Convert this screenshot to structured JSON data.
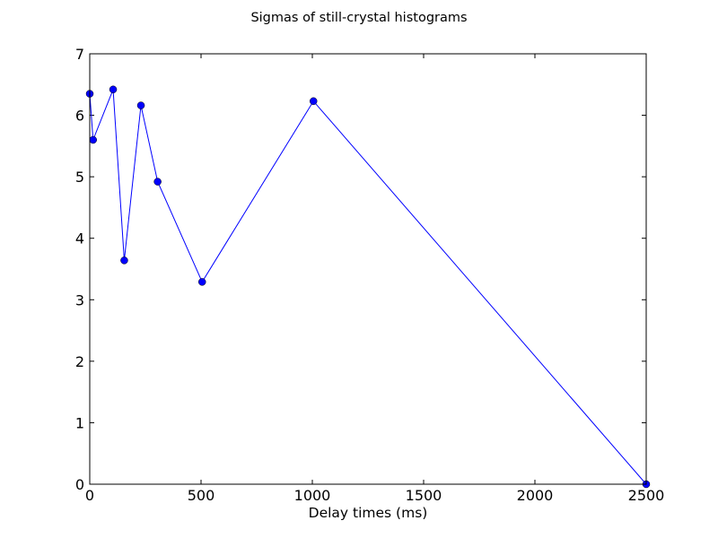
{
  "chart_data": {
    "type": "line",
    "title": "Sigmas of still-crystal histograms",
    "xlabel": "Delay times (ms)",
    "ylabel": "",
    "xlim": [
      0,
      2500
    ],
    "ylim": [
      0,
      7
    ],
    "xticks": [
      0,
      500,
      1000,
      1500,
      2000,
      2500
    ],
    "yticks": [
      0,
      1,
      2,
      3,
      4,
      5,
      6,
      7
    ],
    "grid": false,
    "series": [
      {
        "color": "#0000ff",
        "marker": "circle",
        "x": [
          0,
          15,
          105,
          155,
          230,
          305,
          505,
          1005,
          2500
        ],
        "y": [
          6.35,
          5.6,
          6.42,
          3.64,
          6.16,
          4.92,
          3.29,
          6.23,
          0.0
        ]
      }
    ]
  }
}
